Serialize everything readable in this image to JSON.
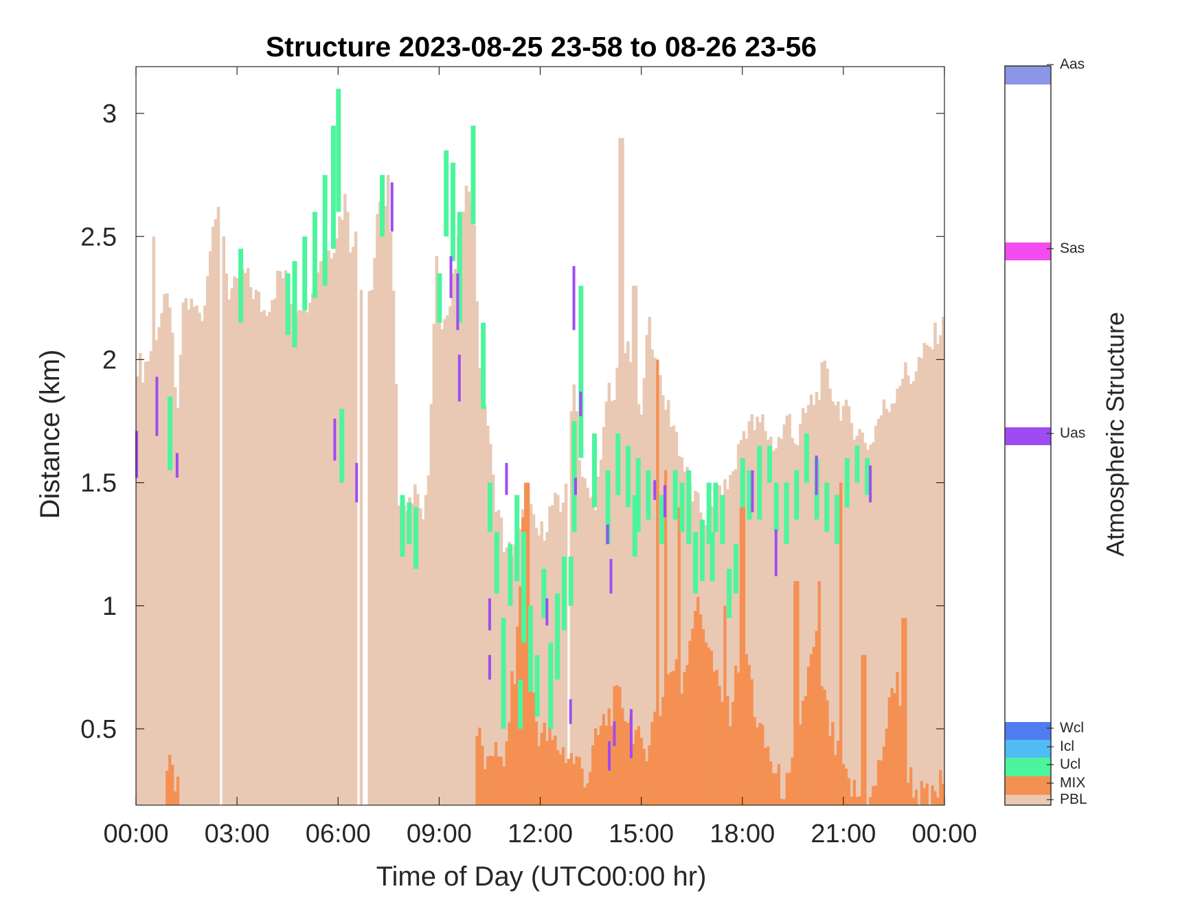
{
  "chart_data": {
    "type": "bar",
    "title": "Structure 2023-08-25 23-58 to 08-26 23-56",
    "xlabel": "Time of Day (UTC00:00 hr)",
    "ylabel": "Distance (km)",
    "xlim": [
      0,
      24
    ],
    "ylim": [
      0.19,
      3.19
    ],
    "x_ticks": [
      "00:00",
      "03:00",
      "06:00",
      "09:00",
      "12:00",
      "15:00",
      "18:00",
      "21:00",
      "00:00"
    ],
    "y_ticks": [
      "0.5",
      "1",
      "1.5",
      "2",
      "2.5",
      "3"
    ],
    "legend": {
      "title": "Atmospheric Structure",
      "placement": "right colorbar",
      "entries": [
        {
          "name": "PBL",
          "color": "#e9c9b4"
        },
        {
          "name": "MIX",
          "color": "#f59053"
        },
        {
          "name": "Ucl",
          "color": "#4cf59c"
        },
        {
          "name": "Icl",
          "color": "#4fbcf4"
        },
        {
          "name": "Wcl",
          "color": "#4f7cef"
        },
        {
          "name": "Uas",
          "color": "#9e4cf2"
        },
        {
          "name": "Sas",
          "color": "#f34cef"
        },
        {
          "name": "Aas",
          "color": "#8c96e6"
        }
      ]
    },
    "pbl_top": [
      [
        0.0,
        2.0
      ],
      [
        0.2,
        1.96
      ],
      [
        0.4,
        2.02
      ],
      [
        0.6,
        2.12
      ],
      [
        0.8,
        2.2
      ],
      [
        1.0,
        2.25
      ],
      [
        1.2,
        1.75
      ],
      [
        1.3,
        1.9
      ],
      [
        1.4,
        2.24
      ],
      [
        1.6,
        2.22
      ],
      [
        1.8,
        2.2
      ],
      [
        2.0,
        2.2
      ],
      [
        2.1,
        2.3
      ],
      [
        2.2,
        2.5
      ],
      [
        2.3,
        2.6
      ],
      [
        2.45,
        2.55
      ],
      [
        2.6,
        2.45
      ],
      [
        2.75,
        2.28
      ],
      [
        3.0,
        2.28
      ],
      [
        3.2,
        2.35
      ],
      [
        3.4,
        2.3
      ],
      [
        3.6,
        2.25
      ],
      [
        3.8,
        2.2
      ],
      [
        4.0,
        2.25
      ],
      [
        4.3,
        2.36
      ],
      [
        4.5,
        2.3
      ],
      [
        4.7,
        2.22
      ],
      [
        4.9,
        2.25
      ],
      [
        5.1,
        2.25
      ],
      [
        5.3,
        2.35
      ],
      [
        5.5,
        2.42
      ],
      [
        5.8,
        2.45
      ],
      [
        6.0,
        2.55
      ],
      [
        6.2,
        2.65
      ],
      [
        6.4,
        2.45
      ],
      [
        6.6,
        2.35
      ],
      [
        6.8,
        2.25
      ],
      [
        7.0,
        2.3
      ],
      [
        7.2,
        2.6
      ],
      [
        7.4,
        2.62
      ],
      [
        7.6,
        2.45
      ],
      [
        7.8,
        1.45
      ],
      [
        8.0,
        1.4
      ],
      [
        8.3,
        1.5
      ],
      [
        8.5,
        1.35
      ],
      [
        8.7,
        1.55
      ],
      [
        8.9,
        2.45
      ],
      [
        9.1,
        2.15
      ],
      [
        9.3,
        2.2
      ],
      [
        9.5,
        2.4
      ],
      [
        9.7,
        2.55
      ],
      [
        9.9,
        2.75
      ],
      [
        10.0,
        2.65
      ],
      [
        10.2,
        2.0
      ],
      [
        10.4,
        1.8
      ],
      [
        10.6,
        1.5
      ],
      [
        10.8,
        1.35
      ],
      [
        11.0,
        1.2
      ],
      [
        11.2,
        1.25
      ],
      [
        11.4,
        1.28
      ],
      [
        11.6,
        1.45
      ],
      [
        11.8,
        1.32
      ],
      [
        12.0,
        1.28
      ],
      [
        12.2,
        1.35
      ],
      [
        12.4,
        1.42
      ],
      [
        12.6,
        1.38
      ],
      [
        12.8,
        1.55
      ],
      [
        13.0,
        1.95
      ],
      [
        13.2,
        1.55
      ],
      [
        13.4,
        1.45
      ],
      [
        13.6,
        1.42
      ],
      [
        13.8,
        1.55
      ],
      [
        14.0,
        1.9
      ],
      [
        14.2,
        1.85
      ],
      [
        14.4,
        2.0
      ],
      [
        14.6,
        2.05
      ],
      [
        14.8,
        1.8
      ],
      [
        15.0,
        1.75
      ],
      [
        15.2,
        2.2
      ],
      [
        15.4,
        2.0
      ],
      [
        15.6,
        1.85
      ],
      [
        15.8,
        1.8
      ],
      [
        16.0,
        1.72
      ],
      [
        16.2,
        1.6
      ],
      [
        16.4,
        1.5
      ],
      [
        16.6,
        1.42
      ],
      [
        16.8,
        1.38
      ],
      [
        17.0,
        1.35
      ],
      [
        17.2,
        1.4
      ],
      [
        17.4,
        1.45
      ],
      [
        17.6,
        1.5
      ],
      [
        17.8,
        1.58
      ],
      [
        18.0,
        1.7
      ],
      [
        18.2,
        1.75
      ],
      [
        18.4,
        1.72
      ],
      [
        18.6,
        1.75
      ],
      [
        18.8,
        1.68
      ],
      [
        19.0,
        1.65
      ],
      [
        19.2,
        1.7
      ],
      [
        19.4,
        1.78
      ],
      [
        19.6,
        1.65
      ],
      [
        19.8,
        1.75
      ],
      [
        20.0,
        1.82
      ],
      [
        20.2,
        1.85
      ],
      [
        20.4,
        1.95
      ],
      [
        20.6,
        1.9
      ],
      [
        20.8,
        1.82
      ],
      [
        21.0,
        1.8
      ],
      [
        21.2,
        1.75
      ],
      [
        21.4,
        1.72
      ],
      [
        21.6,
        1.68
      ],
      [
        21.8,
        1.65
      ],
      [
        22.0,
        1.75
      ],
      [
        22.2,
        1.8
      ],
      [
        22.4,
        1.82
      ],
      [
        22.6,
        1.9
      ],
      [
        22.8,
        1.95
      ],
      [
        23.0,
        1.92
      ],
      [
        23.2,
        1.98
      ],
      [
        23.4,
        2.02
      ],
      [
        23.6,
        2.05
      ],
      [
        23.8,
        2.12
      ],
      [
        24.0,
        2.13
      ]
    ],
    "pbl_spikes": [
      [
        0.5,
        2.5
      ],
      [
        2.45,
        2.62
      ],
      [
        2.6,
        2.5
      ],
      [
        6.3,
        2.6
      ],
      [
        6.55,
        2.52
      ],
      [
        7.5,
        2.75
      ],
      [
        8.3,
        2.4
      ],
      [
        12.85,
        2.38
      ],
      [
        14.4,
        2.9
      ],
      [
        14.8,
        2.3
      ],
      [
        15.2,
        2.1
      ]
    ],
    "pbl_gaps": [
      2.5,
      6.6,
      6.8,
      12.85
    ],
    "pbl_notches": [
      [
        7.75,
        9.0,
        1.22
      ],
      [
        12.55,
        13.2,
        0.8
      ]
    ],
    "mix_top": [
      [
        0.9,
        0.34
      ],
      [
        1.0,
        0.33
      ],
      [
        1.1,
        0.3
      ],
      [
        1.2,
        0.3
      ],
      [
        10.1,
        0.5
      ],
      [
        10.3,
        0.4
      ],
      [
        10.5,
        0.3
      ],
      [
        10.7,
        0.5
      ],
      [
        10.9,
        0.27
      ],
      [
        11.1,
        0.6
      ],
      [
        11.3,
        0.8
      ],
      [
        11.5,
        1.4
      ],
      [
        11.7,
        0.8
      ],
      [
        11.9,
        0.5
      ],
      [
        13.2,
        0.35
      ],
      [
        13.4,
        0.3
      ],
      [
        13.6,
        0.42
      ],
      [
        13.8,
        0.5
      ],
      [
        14.0,
        0.55
      ],
      [
        14.2,
        0.6
      ],
      [
        14.4,
        0.62
      ],
      [
        14.6,
        0.55
      ],
      [
        14.8,
        0.5
      ],
      [
        15.0,
        0.4
      ],
      [
        15.2,
        0.45
      ],
      [
        15.4,
        0.55
      ],
      [
        15.6,
        0.6
      ],
      [
        15.8,
        0.72
      ],
      [
        16.0,
        0.75
      ],
      [
        16.2,
        0.68
      ],
      [
        16.4,
        0.85
      ],
      [
        16.6,
        1.0
      ],
      [
        16.8,
        0.95
      ],
      [
        17.0,
        0.85
      ],
      [
        17.2,
        0.7
      ],
      [
        17.4,
        0.6
      ],
      [
        17.6,
        0.55
      ],
      [
        17.8,
        0.7
      ],
      [
        18.0,
        0.9
      ],
      [
        18.2,
        0.75
      ],
      [
        18.4,
        0.55
      ],
      [
        18.6,
        0.45
      ],
      [
        18.8,
        0.4
      ],
      [
        19.0,
        0.3
      ],
      [
        19.2,
        0.27
      ],
      [
        19.4,
        0.26
      ],
      [
        19.6,
        0.45
      ],
      [
        19.8,
        0.6
      ],
      [
        20.0,
        0.75
      ],
      [
        20.2,
        0.85
      ],
      [
        20.4,
        0.65
      ],
      [
        20.6,
        0.5
      ],
      [
        20.8,
        0.4
      ],
      [
        21.0,
        0.3
      ],
      [
        21.2,
        0.26
      ],
      [
        21.4,
        0.23
      ],
      [
        21.6,
        0.21
      ],
      [
        21.8,
        0.2
      ],
      [
        22.0,
        0.3
      ],
      [
        22.2,
        0.45
      ],
      [
        22.4,
        0.6
      ],
      [
        22.6,
        0.75
      ],
      [
        22.8,
        0.4
      ],
      [
        23.0,
        0.3
      ],
      [
        23.2,
        0.24
      ],
      [
        23.4,
        0.22
      ],
      [
        23.6,
        0.2
      ],
      [
        24.0,
        0.3
      ]
    ],
    "mix_spikes": [
      [
        11.6,
        1.5
      ],
      [
        15.5,
        2.0
      ],
      [
        15.7,
        1.55
      ],
      [
        16.1,
        1.4
      ],
      [
        17.5,
        1.0
      ],
      [
        18.0,
        1.4
      ],
      [
        19.6,
        1.1
      ],
      [
        20.3,
        1.1
      ],
      [
        20.9,
        1.5
      ],
      [
        22.8,
        0.95
      ],
      [
        21.6,
        0.8
      ]
    ],
    "ucl_segments": [
      [
        1.0,
        1.55,
        1.85
      ],
      [
        3.1,
        2.15,
        2.45
      ],
      [
        4.5,
        2.1,
        2.35
      ],
      [
        4.7,
        2.05,
        2.4
      ],
      [
        5.0,
        2.2,
        2.5
      ],
      [
        5.3,
        2.25,
        2.6
      ],
      [
        5.6,
        2.3,
        2.75
      ],
      [
        5.85,
        2.45,
        2.95
      ],
      [
        6.0,
        2.6,
        3.1
      ],
      [
        6.1,
        1.5,
        1.8
      ],
      [
        7.3,
        2.5,
        2.75
      ],
      [
        7.9,
        1.2,
        1.45
      ],
      [
        8.1,
        1.25,
        1.42
      ],
      [
        8.3,
        1.15,
        1.4
      ],
      [
        9.0,
        2.15,
        2.35
      ],
      [
        9.2,
        2.5,
        2.85
      ],
      [
        9.4,
        2.4,
        2.8
      ],
      [
        9.6,
        2.15,
        2.6
      ],
      [
        10.0,
        2.55,
        2.95
      ],
      [
        10.3,
        1.8,
        2.15
      ],
      [
        10.5,
        1.3,
        1.5
      ],
      [
        10.7,
        1.05,
        1.3
      ],
      [
        10.9,
        0.5,
        0.95
      ],
      [
        11.1,
        1.0,
        1.25
      ],
      [
        11.3,
        1.1,
        1.45
      ],
      [
        11.5,
        0.85,
        1.3
      ],
      [
        11.7,
        0.65,
        1.0
      ],
      [
        11.9,
        0.55,
        0.8
      ],
      [
        12.1,
        0.95,
        1.15
      ],
      [
        12.3,
        0.5,
        0.85
      ],
      [
        12.5,
        0.7,
        1.05
      ],
      [
        12.7,
        0.9,
        1.2
      ],
      [
        13.0,
        1.3,
        1.75
      ],
      [
        13.2,
        1.6,
        2.3
      ],
      [
        13.6,
        1.4,
        1.7
      ],
      [
        14.0,
        1.25,
        1.55
      ],
      [
        14.3,
        1.45,
        1.7
      ],
      [
        14.6,
        1.4,
        1.65
      ],
      [
        14.8,
        1.2,
        1.45
      ],
      [
        15.2,
        1.35,
        1.55
      ],
      [
        15.6,
        1.25,
        1.45
      ],
      [
        16.0,
        1.35,
        1.55
      ],
      [
        16.2,
        1.3,
        1.5
      ],
      [
        16.4,
        1.25,
        1.55
      ],
      [
        16.6,
        1.05,
        1.3
      ],
      [
        16.8,
        1.1,
        1.35
      ],
      [
        17.0,
        1.25,
        1.5
      ],
      [
        17.2,
        1.3,
        1.5
      ],
      [
        17.4,
        1.25,
        1.45
      ],
      [
        17.6,
        0.95,
        1.15
      ],
      [
        17.8,
        1.05,
        1.25
      ],
      [
        18.0,
        1.4,
        1.6
      ],
      [
        18.2,
        1.35,
        1.55
      ],
      [
        18.5,
        1.35,
        1.65
      ],
      [
        18.8,
        1.5,
        1.65
      ],
      [
        19.0,
        1.3,
        1.5
      ],
      [
        19.3,
        1.25,
        1.5
      ],
      [
        19.6,
        1.35,
        1.55
      ],
      [
        19.9,
        1.5,
        1.7
      ],
      [
        20.2,
        1.35,
        1.6
      ],
      [
        20.5,
        1.3,
        1.5
      ],
      [
        20.8,
        1.25,
        1.45
      ],
      [
        21.1,
        1.4,
        1.6
      ],
      [
        21.4,
        1.5,
        1.65
      ],
      [
        21.7,
        1.45,
        1.6
      ],
      [
        9.4,
        2.55,
        2.7
      ],
      [
        11.4,
        0.5,
        0.7
      ],
      [
        12.9,
        1.0,
        1.2
      ],
      [
        14.9,
        1.3,
        1.6
      ],
      [
        17.1,
        1.1,
        1.3
      ]
    ],
    "uas_segments": [
      [
        0.02,
        1.52,
        1.71
      ],
      [
        0.62,
        1.69,
        1.93
      ],
      [
        1.22,
        1.52,
        1.62
      ],
      [
        5.9,
        1.59,
        1.76
      ],
      [
        6.55,
        1.42,
        1.58
      ],
      [
        7.6,
        2.52,
        2.72
      ],
      [
        9.35,
        2.25,
        2.42
      ],
      [
        9.55,
        2.12,
        2.35
      ],
      [
        9.6,
        1.83,
        2.02
      ],
      [
        10.5,
        0.7,
        0.8
      ],
      [
        10.5,
        0.9,
        1.03
      ],
      [
        11.0,
        1.45,
        1.58
      ],
      [
        12.2,
        0.92,
        1.03
      ],
      [
        12.9,
        0.52,
        0.62
      ],
      [
        13.0,
        2.12,
        2.38
      ],
      [
        13.05,
        1.45,
        1.52
      ],
      [
        13.2,
        1.77,
        1.87
      ],
      [
        14.0,
        1.25,
        1.33
      ],
      [
        14.05,
        0.33,
        0.45
      ],
      [
        14.1,
        1.05,
        1.19
      ],
      [
        14.2,
        0.43,
        0.53
      ],
      [
        14.7,
        0.38,
        0.58
      ],
      [
        15.4,
        1.43,
        1.51
      ],
      [
        15.7,
        1.36,
        1.49
      ],
      [
        18.3,
        1.38,
        1.55
      ],
      [
        19.0,
        1.12,
        1.31
      ],
      [
        20.2,
        1.45,
        1.61
      ],
      [
        21.8,
        1.42,
        1.57
      ]
    ]
  }
}
